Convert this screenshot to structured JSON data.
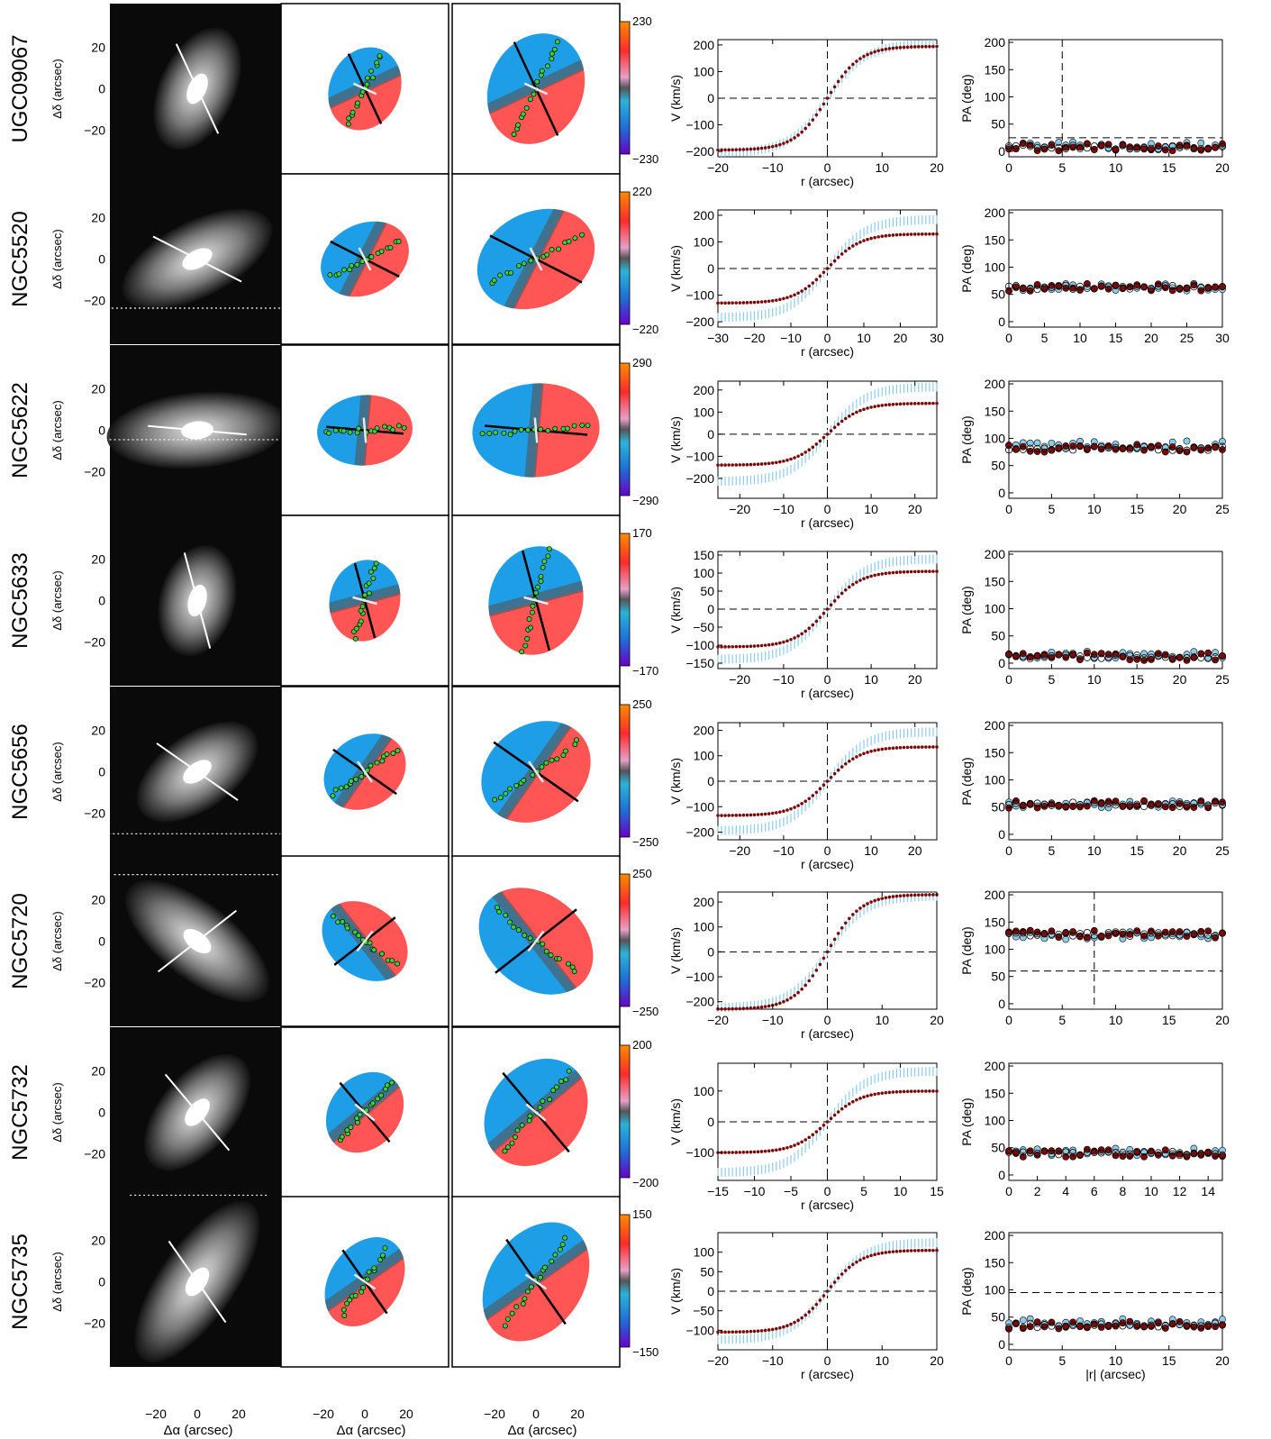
{
  "labels": {
    "dec_axis": "Δδ (arcsec)",
    "ra_axis": "Δα (arcsec)",
    "v_axis": "V (km/s)",
    "r_axis": "r (arcsec)",
    "pa_axis": "PA (deg)",
    "absr_axis": "|r| (arcsec)"
  },
  "colors": {
    "receding": "#ff2a2a",
    "approaching": "#1e9ee6",
    "systemic": "#555555",
    "stellar_points": "#7a0a0a",
    "gas_points": "#8ecbe8",
    "kinemetry_points": "#39d139"
  },
  "chart_data": [
    {
      "type": "scatter",
      "panel": "rotation-curve",
      "galaxy": "UGC09067",
      "xlim": [
        -20,
        20
      ],
      "ylim": [
        -220,
        220
      ],
      "xticks": [
        -20,
        -10,
        0,
        10,
        20
      ],
      "yticks": [
        -200,
        -100,
        0,
        100,
        200
      ],
      "vmax_star": 195,
      "vmax_gas": 205,
      "map_range": [
        -230,
        230
      ],
      "pa_dashed": 25,
      "r_dashed": 5,
      "pa_star": 8,
      "pa_gas": 10,
      "pa_xticks": [
        0,
        5,
        10,
        15,
        20
      ],
      "pa_ticks": [
        0,
        50,
        100,
        150,
        200
      ],
      "pa_ylim": [
        -10,
        205
      ]
    },
    {
      "type": "scatter",
      "panel": "rotation-curve",
      "galaxy": "NGC5520",
      "xlim": [
        -30,
        30
      ],
      "ylim": [
        -220,
        220
      ],
      "xticks": [
        -30,
        -20,
        -10,
        0,
        10,
        20,
        30
      ],
      "yticks": [
        -200,
        -100,
        0,
        100,
        200
      ],
      "vmax_star": 130,
      "vmax_gas": 185,
      "map_range": [
        -220,
        220
      ],
      "pa_dashed": null,
      "r_dashed": null,
      "pa_star": 63,
      "pa_gas": 63,
      "pa_xticks": [
        0,
        5,
        10,
        15,
        20,
        25,
        30
      ],
      "pa_ticks": [
        0,
        50,
        100,
        150,
        200
      ],
      "pa_ylim": [
        -10,
        205
      ]
    },
    {
      "type": "scatter",
      "panel": "rotation-curve",
      "galaxy": "NGC5622",
      "xlim": [
        -25,
        25
      ],
      "ylim": [
        -290,
        240
      ],
      "xticks": [
        -20,
        -10,
        0,
        10,
        20
      ],
      "yticks": [
        -200,
        -100,
        0,
        100,
        200
      ],
      "vmax_star": 140,
      "vmax_gas": 215,
      "map_range": [
        -290,
        290
      ],
      "pa_dashed": null,
      "r_dashed": null,
      "pa_star": 82,
      "pa_gas": 88,
      "pa_xticks": [
        0,
        5,
        10,
        15,
        20,
        25
      ],
      "pa_ticks": [
        0,
        50,
        100,
        150,
        200
      ],
      "pa_ylim": [
        -10,
        205
      ]
    },
    {
      "type": "scatter",
      "panel": "rotation-curve",
      "galaxy": "NGC5633",
      "xlim": [
        -25,
        25
      ],
      "ylim": [
        -165,
        160
      ],
      "xticks": [
        -20,
        -10,
        0,
        10,
        20
      ],
      "yticks": [
        -150,
        -100,
        -50,
        0,
        50,
        100,
        150
      ],
      "vmax_star": 105,
      "vmax_gas": 140,
      "map_range": [
        -170,
        170
      ],
      "pa_dashed": null,
      "r_dashed": null,
      "pa_star": 12,
      "pa_gas": 15,
      "pa_xticks": [
        0,
        5,
        10,
        15,
        20,
        25
      ],
      "pa_ticks": [
        0,
        50,
        100,
        150,
        200
      ],
      "pa_ylim": [
        -10,
        205
      ]
    },
    {
      "type": "scatter",
      "panel": "rotation-curve",
      "galaxy": "NGC5656",
      "xlim": [
        -25,
        25
      ],
      "ylim": [
        -230,
        230
      ],
      "xticks": [
        -20,
        -10,
        0,
        10,
        20
      ],
      "yticks": [
        -200,
        -100,
        0,
        100,
        200
      ],
      "vmax_star": 135,
      "vmax_gas": 195,
      "map_range": [
        -250,
        250
      ],
      "pa_dashed": null,
      "r_dashed": null,
      "pa_star": 55,
      "pa_gas": 55,
      "pa_xticks": [
        0,
        5,
        10,
        15,
        20,
        25
      ],
      "pa_ticks": [
        0,
        50,
        100,
        150,
        200
      ],
      "pa_ylim": [
        -10,
        205
      ]
    },
    {
      "type": "scatter",
      "panel": "rotation-curve",
      "galaxy": "NGC5720",
      "xlim": [
        -20,
        20
      ],
      "ylim": [
        -230,
        240
      ],
      "xticks": [
        -20,
        -10,
        0,
        10,
        20
      ],
      "yticks": [
        -200,
        -100,
        0,
        100,
        200
      ],
      "vmax_star": 230,
      "vmax_gas": 225,
      "map_range": [
        -250,
        250
      ],
      "pa_dashed": 60,
      "r_dashed": 8,
      "pa_star": 128,
      "pa_gas": 125,
      "pa_xticks": [
        0,
        5,
        10,
        15,
        20
      ],
      "pa_ticks": [
        0,
        50,
        100,
        150,
        200
      ],
      "pa_ylim": [
        -10,
        205
      ]
    },
    {
      "type": "scatter",
      "panel": "rotation-curve",
      "galaxy": "NGC5732",
      "xlim": [
        -15,
        15
      ],
      "ylim": [
        -190,
        190
      ],
      "xticks": [
        -15,
        -10,
        -5,
        0,
        5,
        10,
        15
      ],
      "yticks": [
        -100,
        0,
        100
      ],
      "vmax_star": 100,
      "vmax_gas": 165,
      "map_range": [
        -200,
        200
      ],
      "pa_dashed": null,
      "r_dashed": null,
      "pa_star": 40,
      "pa_gas": 42,
      "pa_xticks": [
        0,
        2,
        4,
        6,
        8,
        10,
        12,
        14
      ],
      "pa_ticks": [
        0,
        50,
        100,
        150,
        200
      ],
      "pa_ylim": [
        -10,
        205
      ]
    },
    {
      "type": "scatter",
      "panel": "rotation-curve",
      "galaxy": "NGC5735",
      "xlim": [
        -20,
        20
      ],
      "ylim": [
        -150,
        150
      ],
      "xticks": [
        -20,
        -10,
        0,
        10,
        20
      ],
      "yticks": [
        -100,
        -50,
        0,
        50,
        100
      ],
      "vmax_star": 105,
      "vmax_gas": 125,
      "map_range": [
        -150,
        150
      ],
      "pa_dashed": 95,
      "r_dashed": null,
      "pa_star": 35,
      "pa_gas": 40,
      "pa_xticks": [
        0,
        5,
        10,
        15,
        20
      ],
      "pa_ticks": [
        0,
        50,
        100,
        150,
        200
      ],
      "pa_ylim": [
        -10,
        205
      ]
    }
  ]
}
